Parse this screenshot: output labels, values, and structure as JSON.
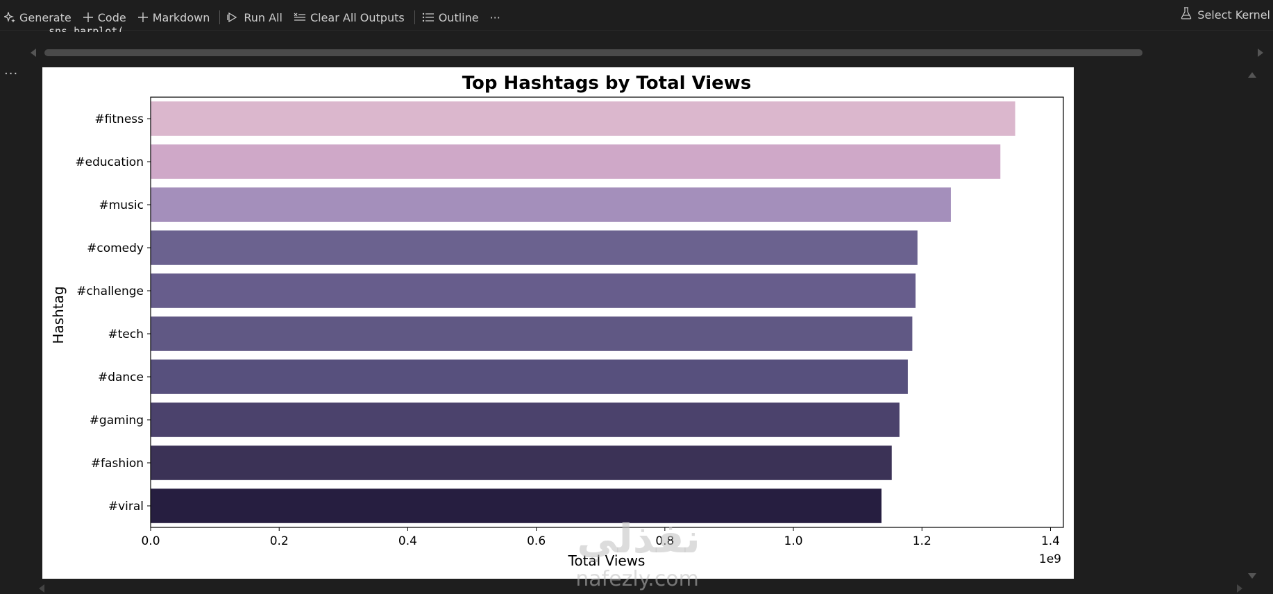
{
  "toolbar": {
    "generate_label": "Generate",
    "code_label": "Code",
    "markdown_label": "Markdown",
    "run_all_label": "Run All",
    "clear_outputs_label": "Clear All Outputs",
    "outline_label": "Outline",
    "more_label": "···",
    "kernel_label": "Select Kernel"
  },
  "cell": {
    "code_text": "sns.barplot("
  },
  "output": {
    "more_label": "···"
  },
  "chart_data": {
    "type": "bar",
    "orientation": "horizontal",
    "title": "Top Hashtags by Total Views",
    "xlabel": "Total Views",
    "ylabel": "Hashtag",
    "x_offset_label": "1e9",
    "xlim": [
      0,
      1.42
    ],
    "xticks": [
      0.0,
      0.2,
      0.4,
      0.6,
      0.8,
      1.0,
      1.2,
      1.4
    ],
    "xtick_labels": [
      "0.0",
      "0.2",
      "0.4",
      "0.6",
      "0.8",
      "1.0",
      "1.2",
      "1.4"
    ],
    "categories": [
      "#fitness",
      "#education",
      "#music",
      "#comedy",
      "#challenge",
      "#tech",
      "#dance",
      "#gaming",
      "#fashion",
      "#viral"
    ],
    "values": [
      1.345,
      1.322,
      1.245,
      1.193,
      1.19,
      1.185,
      1.178,
      1.165,
      1.153,
      1.137
    ],
    "colors": [
      "#dbb7cd",
      "#cfa8c8",
      "#a48fbb",
      "#6b628f",
      "#675d8c",
      "#605884",
      "#57507d",
      "#4b426c",
      "#3b3256",
      "#261e40"
    ],
    "grid": false,
    "legend": "none"
  },
  "watermark": {
    "arabic_text": "نفذلي",
    "latin_text": "nafezly.com"
  }
}
